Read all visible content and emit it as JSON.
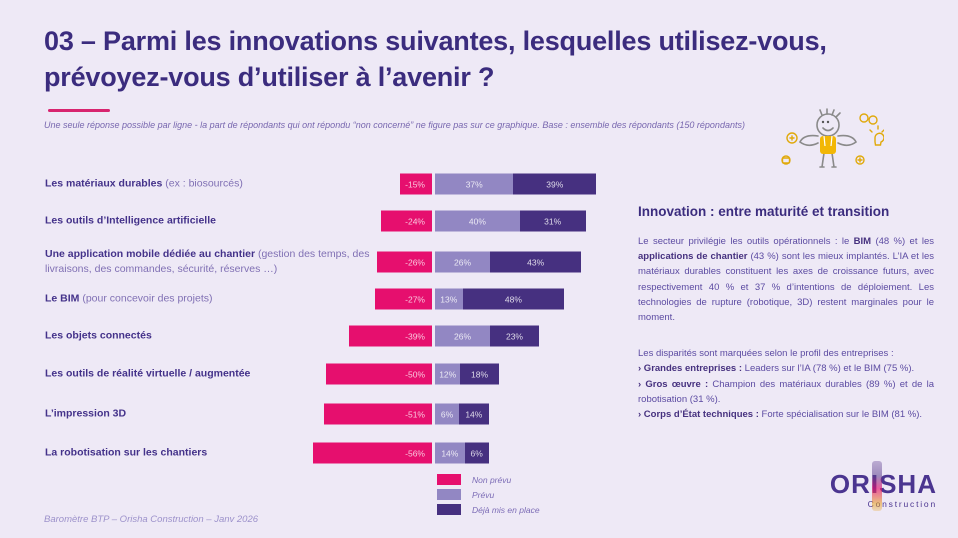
{
  "page": {
    "background": "#EEE9F6",
    "title": "03 – Parmi les innovations suivantes, lesquelles utilisez-vous, prévoyez-vous d’utiliser à l’avenir ?",
    "subtitle": "Une seule réponse possible par ligne - la part de répondants qui ont répondu “non concerné”  ne figure pas sur ce graphique. Base : ensemble des répondants (150 répondants)",
    "footer": "Baromètre BTP – Orisha Construction – Janv 2026"
  },
  "colors": {
    "background": "#EEE9F6",
    "non_prevu": "#E60F6E",
    "prevu": "#9287C3",
    "deja_mis_en_place": "#463080",
    "title": "#3B2C7E",
    "accent_underline": "#D8246F"
  },
  "icons": {
    "mascot": "juggling-person-doodle",
    "logo_stripe": "feather-gradient-stripe"
  },
  "chart_data": {
    "type": "bar",
    "variant": "horizontal-diverging-stacked",
    "unit": "%",
    "center_axis": 0,
    "grid": false,
    "legend_position": "bottom-center",
    "legend": [
      {
        "key": "non_prevu",
        "label": "Non prévu",
        "color": "#E60F6E"
      },
      {
        "key": "prevu",
        "label": "Prévu",
        "color": "#9287C3"
      },
      {
        "key": "deja_mis_en_place",
        "label": "Déjà mis en place",
        "color": "#463080"
      }
    ],
    "rows": [
      {
        "label_bold": "Les matériaux durables",
        "label_rest": " (ex : biosourcés)",
        "non_prevu": -15,
        "prevu": 37,
        "deja_mis_en_place": 39
      },
      {
        "label_bold": "Les outils d’Intelligence artificielle",
        "label_rest": "",
        "non_prevu": -24,
        "prevu": 40,
        "deja_mis_en_place": 31
      },
      {
        "label_bold": "Une application mobile dédiée au chantier",
        "label_rest": " (gestion des temps, des livraisons, des commandes, sécurité, réserves …)",
        "non_prevu": -26,
        "prevu": 26,
        "deja_mis_en_place": 43
      },
      {
        "label_bold": "Le BIM",
        "label_rest": " (pour concevoir des projets)",
        "non_prevu": -27,
        "prevu": 13,
        "deja_mis_en_place": 48
      },
      {
        "label_bold": "Les objets connectés",
        "label_rest": "",
        "non_prevu": -39,
        "prevu": 26,
        "deja_mis_en_place": 23
      },
      {
        "label_bold": "Les outils de réalité virtuelle / augmentée",
        "label_rest": "",
        "non_prevu": -50,
        "prevu": 12,
        "deja_mis_en_place": 18
      },
      {
        "label_bold": "L’impression 3D",
        "label_rest": "",
        "non_prevu": -51,
        "prevu": 6,
        "deja_mis_en_place": 14
      },
      {
        "label_bold": "La robotisation sur les chantiers",
        "label_rest": "",
        "non_prevu": -56,
        "prevu": 14,
        "deja_mis_en_place": 6
      }
    ]
  },
  "insight": {
    "heading": "Innovation : entre maturité et transition",
    "para1": [
      {
        "t": "Le secteur privilégie les outils opérationnels : le "
      },
      {
        "t": "BIM",
        "b": true
      },
      {
        "t": " (48 %) et les "
      },
      {
        "t": "applications de chantier",
        "b": true
      },
      {
        "t": " (43 %) sont les mieux implantés. L’IA et les matériaux durables constituent les axes de croissance futurs, avec respectivement 40 % et 37 % d’intentions de déploiement. Les technologies de rupture (robotique, 3D) restent marginales pour le moment."
      }
    ],
    "para2_intro": "Les disparités sont marquées selon le profil des entreprises :",
    "bullets": [
      [
        {
          "t": "› Grandes entreprises : ",
          "b": true
        },
        {
          "t": "Leaders sur l’IA (78 %) et le BIM (75 %)."
        }
      ],
      [
        {
          "t": "› Gros œuvre : ",
          "b": true
        },
        {
          "t": "Champion des matériaux durables (89 %) et de la robotisation (31 %)."
        }
      ],
      [
        {
          "t": "› Corps d’État techniques : ",
          "b": true
        },
        {
          "t": "Forte spécialisation sur le BIM (81 %)."
        }
      ]
    ]
  },
  "logo": {
    "word_start": "OR",
    "word_mid": "I",
    "word_end": "SHA",
    "subtitle": "Construction"
  }
}
